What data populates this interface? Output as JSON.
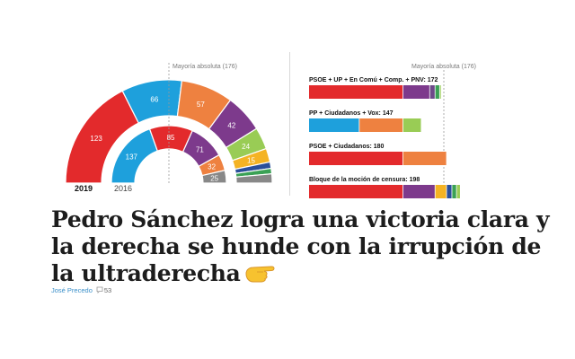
{
  "headline": "Pedro Sánchez logra una victoria clara y la derecha se hunde con la irrupción de la ultraderecha",
  "byline": {
    "author": "José Precedo",
    "comment_count": "53"
  },
  "icons": {
    "pointer": "backhand-index-pointing-right-icon",
    "comments": "speech-bubble-icon"
  },
  "colors": {
    "psoe": "#e32a2c",
    "pp": "#1ea0dc",
    "cs": "#ee8140",
    "up": "#7d3a8c",
    "vox": "#99cc55",
    "ecp": "#6e4a8a",
    "erc": "#f4b324",
    "jxcat": "#2a4f9a",
    "pnv": "#3aa155",
    "otros": "#888888"
  },
  "chart_data": [
    {
      "type": "hemicycle",
      "majority_label": "Mayoría absoluta (176)",
      "majority": 176,
      "total_seats": 350,
      "series": [
        {
          "name": "2019",
          "segments": [
            {
              "party": "psoe",
              "seats": 123,
              "label": "123"
            },
            {
              "party": "pp",
              "seats": 66,
              "label": "66"
            },
            {
              "party": "cs",
              "seats": 57,
              "label": "57"
            },
            {
              "party": "up",
              "seats": 42,
              "label": "42"
            },
            {
              "party": "vox",
              "seats": 24,
              "label": "24"
            },
            {
              "party": "erc",
              "seats": 15,
              "label": "15"
            },
            {
              "party": "jxcat",
              "seats": 7,
              "label": ""
            },
            {
              "party": "pnv",
              "seats": 6,
              "label": ""
            },
            {
              "party": "otros",
              "seats": 10,
              "label": ""
            }
          ]
        },
        {
          "name": "2016",
          "segments": [
            {
              "party": "pp",
              "seats": 137,
              "label": "137"
            },
            {
              "party": "psoe",
              "seats": 85,
              "label": "85"
            },
            {
              "party": "up",
              "seats": 71,
              "label": "71"
            },
            {
              "party": "cs",
              "seats": 32,
              "label": "32"
            },
            {
              "party": "otros",
              "seats": 25,
              "label": "25"
            }
          ]
        }
      ]
    },
    {
      "type": "bar",
      "stacked": true,
      "majority_label": "Mayoría absoluta (176)",
      "majority": 176,
      "categories": [
        {
          "label": "PSOE + UP + En Comú + Comp. + PNV: 172",
          "parts": [
            {
              "party": "psoe",
              "seats": 123
            },
            {
              "party": "up",
              "seats": 35
            },
            {
              "party": "ecp",
              "seats": 7
            },
            {
              "party": "pnv",
              "seats": 6
            },
            {
              "party": "vox",
              "seats": 1
            }
          ]
        },
        {
          "label": "PP + Ciudadanos + Vox: 147",
          "parts": [
            {
              "party": "pp",
              "seats": 66
            },
            {
              "party": "cs",
              "seats": 57
            },
            {
              "party": "vox",
              "seats": 24
            }
          ]
        },
        {
          "label": "PSOE + Ciudadanos: 180",
          "parts": [
            {
              "party": "psoe",
              "seats": 123
            },
            {
              "party": "cs",
              "seats": 57
            }
          ]
        },
        {
          "label": "Bloque de la moción de censura: 198",
          "parts": [
            {
              "party": "psoe",
              "seats": 123
            },
            {
              "party": "up",
              "seats": 42
            },
            {
              "party": "erc",
              "seats": 15
            },
            {
              "party": "jxcat",
              "seats": 7
            },
            {
              "party": "pnv",
              "seats": 6
            },
            {
              "party": "vox",
              "seats": 5
            }
          ]
        }
      ]
    }
  ]
}
